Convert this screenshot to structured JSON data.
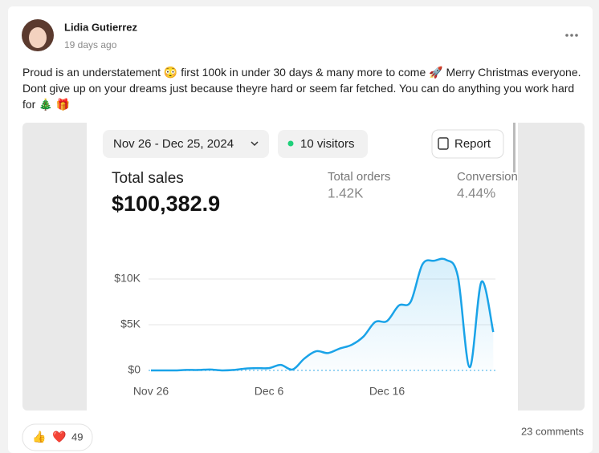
{
  "post": {
    "author": "Lidia Gutierrez",
    "time": "19 days ago",
    "text": "Proud is an understatement 😳 first 100k in under 30 days & many more to come 🚀 Merry Christmas everyone. Dont give up on your dreams just because theyre hard or seem far fetched. You can do anything you work hard for 🎄 🎁"
  },
  "image": {
    "date_range": "Nov 26 - Dec 25, 2024",
    "visitors": "10 visitors",
    "report": "Report",
    "metrics": [
      {
        "label": "Total sales",
        "value": "$100,382.9"
      },
      {
        "label": "Total orders",
        "value": "1.42K"
      },
      {
        "label": "Conversion",
        "value": "4.44%"
      }
    ]
  },
  "chart_data": {
    "type": "line",
    "color": "#1aa3e8",
    "grid": true,
    "categories": [
      "Nov 26",
      null,
      null,
      null,
      null,
      null,
      null,
      null,
      null,
      null,
      "Dec 6",
      null,
      null,
      null,
      null,
      null,
      null,
      null,
      null,
      null,
      "Dec 16",
      null,
      null,
      null,
      null,
      null,
      null,
      null,
      null,
      null
    ],
    "values": [
      0,
      0,
      0,
      50,
      50,
      100,
      0,
      50,
      200,
      250,
      250,
      600,
      100,
      1300,
      2100,
      1900,
      2400,
      2800,
      3700,
      5300,
      5400,
      7100,
      7500,
      11600,
      12000,
      12100,
      10300,
      350,
      9700,
      4200
    ],
    "ylim": [
      0,
      12500
    ],
    "yticks": [
      {
        "value": 0,
        "label": "$0"
      },
      {
        "value": 5000,
        "label": "$5K"
      },
      {
        "value": 10000,
        "label": "$10K"
      }
    ]
  },
  "footer": {
    "reactions": [
      "👍",
      "❤️"
    ],
    "reaction_count": 49,
    "comments": "23 comments"
  }
}
